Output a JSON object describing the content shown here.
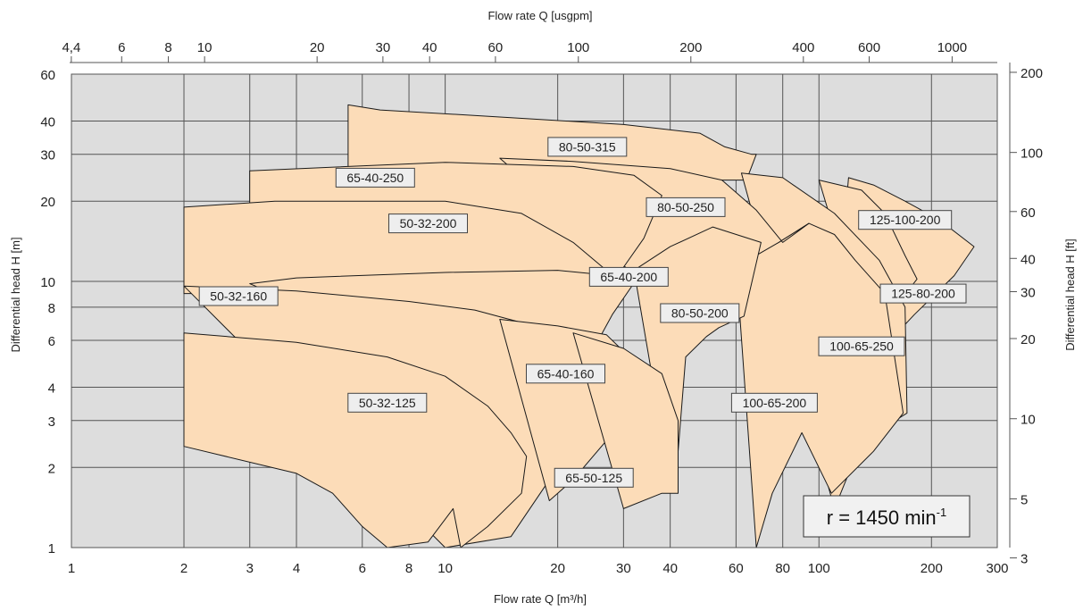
{
  "chart_data": {
    "type": "area",
    "title": "",
    "xlabel": "Flow rate Q [m³/h]",
    "ylabel": "Differential head H [m]",
    "x2label": "Flow rate Q [usgpm]",
    "y2label": "Differential head H [ft]",
    "x_scale": "log",
    "y_scale": "log",
    "xlim": [
      1,
      300
    ],
    "ylim": [
      1,
      60
    ],
    "grid": true,
    "colors": {
      "plot_bg": "#dddddd",
      "fill": "#fcdcb8",
      "stroke": "#1a1a1a",
      "grid": "#555555",
      "label_bg": "#eeeeee"
    },
    "x_ticks": [
      "1",
      "2",
      "3",
      "4",
      "6",
      "8",
      "10",
      "20",
      "30",
      "40",
      "60",
      "80",
      "100",
      "200",
      "300"
    ],
    "y_ticks": [
      "1",
      "2",
      "3",
      "4",
      "6",
      "8",
      "10",
      "20",
      "30",
      "40",
      "60"
    ],
    "x2_ticks": [
      "4,4",
      "6",
      "8",
      "10",
      "20",
      "30",
      "40",
      "60",
      "100",
      "200",
      "400",
      "600",
      "1000"
    ],
    "y2_ticks": [
      "3",
      "5",
      "10",
      "20",
      "30",
      "40",
      "60",
      "100",
      "200"
    ],
    "annotation": {
      "text": "r = 1450 min",
      "sup": "-1"
    },
    "series": [
      {
        "name": "80-50-315",
        "label_at": [
          24,
          32
        ],
        "polygon": [
          [
            5.5,
            46
          ],
          [
            6.7,
            44
          ],
          [
            15,
            41.2
          ],
          [
            30,
            38.8
          ],
          [
            48,
            36
          ],
          [
            56,
            32
          ],
          [
            66,
            30
          ],
          [
            68,
            30
          ],
          [
            64,
            24
          ],
          [
            5.5,
            24
          ]
        ]
      },
      {
        "name": "125-100-200",
        "label_at": [
          170,
          17
        ],
        "polygon": [
          [
            120,
            24.5
          ],
          [
            140,
            23
          ],
          [
            170,
            20
          ],
          [
            210,
            17
          ],
          [
            260,
            13.5
          ],
          [
            230,
            10.5
          ],
          [
            180,
            7.5
          ],
          [
            155,
            6
          ],
          [
            110,
            6
          ]
        ]
      },
      {
        "name": "125-80-200",
        "label_at": [
          190,
          9
        ],
        "polygon": [
          [
            100,
            24
          ],
          [
            130,
            22
          ],
          [
            150,
            18
          ],
          [
            170,
            12.5
          ],
          [
            183,
            10.2
          ],
          [
            160,
            8
          ],
          [
            130,
            7
          ]
        ]
      },
      {
        "name": "100-65-250",
        "label_at": [
          130,
          5.7
        ],
        "polygon": [
          [
            62,
            25.5
          ],
          [
            80,
            24.5
          ],
          [
            110,
            18
          ],
          [
            145,
            12
          ],
          [
            170,
            8
          ],
          [
            172,
            3.2
          ],
          [
            130,
            2.5
          ],
          [
            110,
            1.4
          ]
        ]
      },
      {
        "name": "100-65-200",
        "label_at": [
          76,
          3.5
        ],
        "polygon": [
          [
            60,
            11.8
          ],
          [
            78,
            14
          ],
          [
            94,
            16.5
          ],
          [
            110,
            15
          ],
          [
            125,
            12
          ],
          [
            150,
            9
          ],
          [
            168,
            3.2
          ],
          [
            140,
            2.3
          ],
          [
            108,
            1.6
          ],
          [
            90,
            2.7
          ],
          [
            75,
            1.6
          ],
          [
            68,
            1
          ]
        ]
      },
      {
        "name": "80-50-250",
        "label_at": [
          44,
          19
        ],
        "polygon": [
          [
            14,
            29
          ],
          [
            22,
            28.2
          ],
          [
            40,
            26.5
          ],
          [
            55,
            24
          ],
          [
            68,
            18.5
          ],
          [
            80,
            14
          ],
          [
            94,
            16.5
          ],
          [
            78,
            14
          ],
          [
            58,
            11
          ],
          [
            50,
            7.5
          ],
          [
            45,
            7
          ]
        ]
      },
      {
        "name": "80-50-200",
        "label_at": [
          48,
          7.6
        ],
        "polygon": [
          [
            32,
            11
          ],
          [
            40,
            13.5
          ],
          [
            52,
            16
          ],
          [
            70,
            14
          ],
          [
            63,
            7.4
          ],
          [
            54,
            6.7
          ],
          [
            50,
            6.2
          ],
          [
            44,
            5.2
          ],
          [
            42,
            2.3
          ],
          [
            38,
            2.7
          ]
        ]
      },
      {
        "name": "65-40-250",
        "label_at": [
          6.5,
          24.5
        ],
        "polygon": [
          [
            3,
            26
          ],
          [
            10,
            28
          ],
          [
            22,
            27
          ],
          [
            32,
            25
          ],
          [
            38,
            21
          ],
          [
            34,
            14.5
          ],
          [
            30,
            11.3
          ],
          [
            25,
            8.5
          ],
          [
            22,
            7.5
          ],
          [
            3,
            7.5
          ]
        ]
      },
      {
        "name": "50-32-200",
        "label_at": [
          9,
          16.5
        ],
        "polygon": [
          [
            2,
            19
          ],
          [
            3.5,
            20
          ],
          [
            10,
            20
          ],
          [
            16,
            18
          ],
          [
            22,
            14
          ],
          [
            27,
            11
          ],
          [
            20,
            9
          ],
          [
            2,
            9
          ]
        ]
      },
      {
        "name": "65-40-200",
        "label_at": [
          31,
          10.4
        ],
        "polygon": [
          [
            3,
            9.8
          ],
          [
            4,
            10.3
          ],
          [
            10,
            10.8
          ],
          [
            20,
            11
          ],
          [
            28,
            10.5
          ],
          [
            30,
            9.7
          ],
          [
            33,
            10.5
          ],
          [
            28,
            7.5
          ],
          [
            26,
            6.2
          ],
          [
            22,
            4.5
          ],
          [
            20,
            3.2
          ]
        ]
      },
      {
        "name": "50-32-160",
        "label_at": [
          2.8,
          8.8
        ],
        "polygon": [
          [
            2,
            9.6
          ],
          [
            4,
            9.2
          ],
          [
            8,
            8.4
          ],
          [
            12,
            7.8
          ],
          [
            16,
            7
          ],
          [
            18,
            6.5
          ],
          [
            22,
            5
          ],
          [
            25,
            3.8
          ],
          [
            26,
            3.5
          ],
          [
            20,
            2
          ],
          [
            15,
            1.1
          ],
          [
            10,
            1
          ]
        ]
      },
      {
        "name": "65-40-160",
        "label_at": [
          21,
          4.5
        ],
        "polygon": [
          [
            14,
            7.2
          ],
          [
            20,
            6.8
          ],
          [
            27,
            6.3
          ],
          [
            32,
            5
          ],
          [
            36,
            3.9
          ],
          [
            30,
            3
          ],
          [
            22,
            1.8
          ],
          [
            19,
            1.5
          ]
        ]
      },
      {
        "name": "65-50-125",
        "label_at": [
          25,
          1.83
        ],
        "polygon": [
          [
            22,
            6.4
          ],
          [
            30,
            5.6
          ],
          [
            38,
            4.5
          ],
          [
            42,
            3
          ],
          [
            42,
            1.6
          ],
          [
            38,
            1.6
          ],
          [
            30,
            1.4
          ]
        ]
      },
      {
        "name": "50-32-125",
        "label_at": [
          7,
          3.5
        ],
        "polygon": [
          [
            2,
            6.4
          ],
          [
            4,
            5.9
          ],
          [
            7,
            5.2
          ],
          [
            10,
            4.4
          ],
          [
            13,
            3.4
          ],
          [
            15,
            2.7
          ],
          [
            16.5,
            2.2
          ],
          [
            16,
            1.6
          ],
          [
            13,
            1.2
          ],
          [
            11,
            1
          ],
          [
            10.5,
            1.4
          ],
          [
            9,
            1.05
          ],
          [
            7,
            1
          ],
          [
            6,
            1.2
          ],
          [
            5,
            1.6
          ],
          [
            4,
            1.9
          ],
          [
            2,
            2.4
          ]
        ]
      }
    ]
  }
}
